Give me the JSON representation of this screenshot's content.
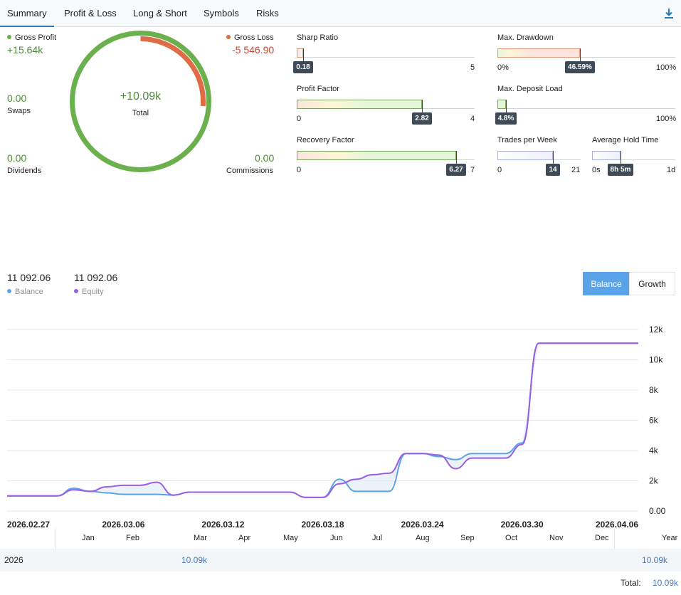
{
  "tabs": [
    "Summary",
    "Profit & Loss",
    "Long & Short",
    "Symbols",
    "Risks"
  ],
  "summary": {
    "gross_profit_label": "Gross Profit",
    "gross_profit_value": "+15.64k",
    "gross_loss_label": "Gross Loss",
    "gross_loss_value": "-5 546.90",
    "total_value": "+10.09k",
    "total_label": "Total",
    "swaps_value": "0.00",
    "swaps_label": "Swaps",
    "dividends_value": "0.00",
    "dividends_label": "Dividends",
    "commissions_value": "0.00",
    "commissions_label": "Commissions",
    "gross_loss_fraction": 0.2618
  },
  "metrics": {
    "sharp": {
      "title": "Sharp Ratio",
      "value": "0.18",
      "min": "0",
      "max": "5",
      "fraction": 0.036
    },
    "profit_factor": {
      "title": "Profit Factor",
      "value": "2.82",
      "min": "0",
      "max": "4",
      "fraction": 0.705
    },
    "recovery": {
      "title": "Recovery Factor",
      "value": "6.27",
      "min": "0",
      "max": "7",
      "fraction": 0.896
    },
    "drawdown": {
      "title": "Max. Drawdown",
      "value": "46.59%",
      "min": "0%",
      "max": "100%",
      "fraction": 0.4659
    },
    "deposit_load": {
      "title": "Max. Deposit Load",
      "value": "4.8%",
      "min": "0",
      "max": "100%",
      "fraction": 0.048
    },
    "trades_week": {
      "title": "Trades per Week",
      "value": "14",
      "min": "0",
      "max": "21",
      "fraction": 0.667
    },
    "hold_time": {
      "title": "Average Hold Time",
      "value": "8h 5m",
      "min": "0s",
      "max": "1d",
      "fraction": 0.34
    }
  },
  "chart_header": {
    "balance_value": "11 092.06",
    "balance_label": "Balance",
    "equity_value": "11 092.06",
    "equity_label": "Equity",
    "btn_balance": "Balance",
    "btn_growth": "Growth"
  },
  "colors": {
    "profit": "#6ab04c",
    "loss": "#e06c47",
    "balance": "#5aa3e8",
    "equity": "#9b5de5",
    "accent": "#5aa3e8"
  },
  "chart_data": {
    "type": "line",
    "x": [
      "2026.02.27",
      "2026.02.28",
      "2026.03.01",
      "2026.03.02",
      "2026.03.03",
      "2026.03.04",
      "2026.03.05",
      "2026.03.06",
      "2026.03.07",
      "2026.03.08",
      "2026.03.09",
      "2026.03.10",
      "2026.03.11",
      "2026.03.12",
      "2026.03.13",
      "2026.03.14",
      "2026.03.15",
      "2026.03.16",
      "2026.03.17",
      "2026.03.18",
      "2026.03.19",
      "2026.03.20",
      "2026.03.21",
      "2026.03.22",
      "2026.03.23",
      "2026.03.24",
      "2026.03.25",
      "2026.03.26",
      "2026.03.27",
      "2026.03.28",
      "2026.03.29",
      "2026.03.30",
      "2026.03.31",
      "2026.04.01",
      "2026.04.02",
      "2026.04.03",
      "2026.04.04",
      "2026.04.05",
      "2026.04.06"
    ],
    "series": [
      {
        "name": "Balance",
        "values": [
          1000,
          1000,
          1000,
          1000,
          1500,
          1300,
          1200,
          1100,
          1100,
          1100,
          1050,
          1250,
          1250,
          1250,
          1250,
          1250,
          1250,
          1250,
          900,
          900,
          2100,
          1300,
          1300,
          1300,
          3800,
          3800,
          3600,
          3400,
          3800,
          3800,
          3800,
          4500,
          11092,
          11092,
          11092,
          11092,
          11092,
          11092,
          11092
        ]
      },
      {
        "name": "Equity",
        "values": [
          1000,
          1000,
          1000,
          1000,
          1400,
          1300,
          1600,
          1700,
          1700,
          1900,
          1050,
          1250,
          1250,
          1250,
          1250,
          1250,
          1250,
          1250,
          900,
          900,
          1800,
          2100,
          2400,
          2500,
          3800,
          3800,
          3700,
          2800,
          3500,
          3500,
          3500,
          4400,
          11092,
          11092,
          11092,
          11092,
          11092,
          11092,
          11092
        ]
      }
    ],
    "x_tick_labels": [
      "2026.02.27",
      "2026.03.06",
      "2026.03.12",
      "2026.03.18",
      "2026.03.24",
      "2026.03.30",
      "2026.04.06"
    ],
    "y_tick_labels": [
      "12k",
      "10k",
      "8k",
      "6k",
      "4k",
      "2k",
      "0.00"
    ],
    "ylim": [
      0,
      12000
    ],
    "grid": true
  },
  "year_table": {
    "months": [
      "Jan",
      "Feb",
      "Mar",
      "Apr",
      "May",
      "Jun",
      "Jul",
      "Aug",
      "Sep",
      "Oct",
      "Nov",
      "Dec"
    ],
    "year_header": "Year",
    "row_year": "2026",
    "row_feb": "10.09k",
    "row_total": "10.09k",
    "total_label": "Total:",
    "total_value": "10.09k"
  }
}
